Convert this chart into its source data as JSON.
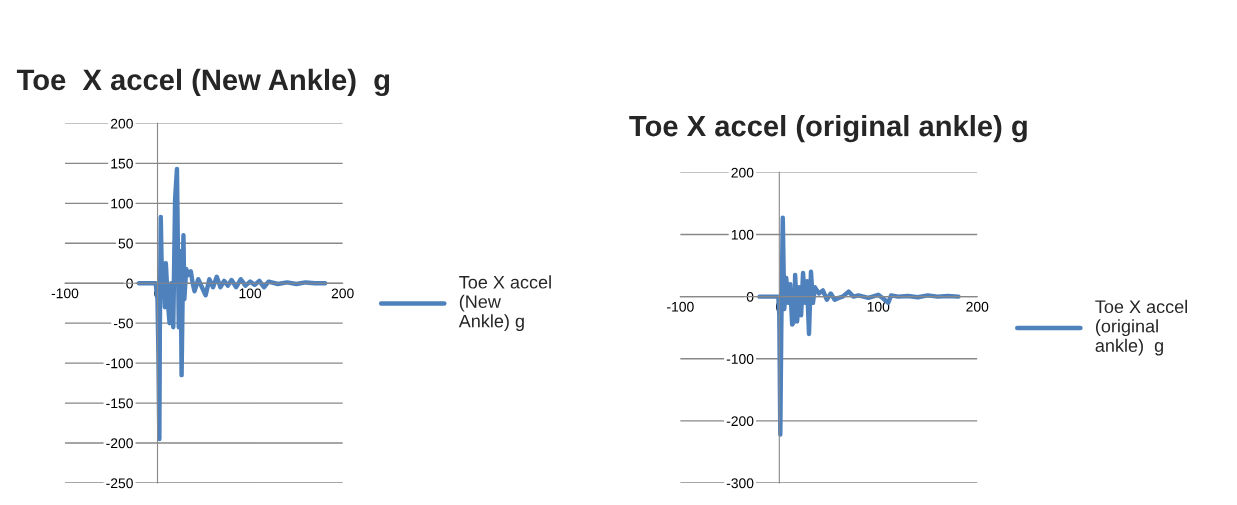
{
  "chart_data": [
    {
      "type": "line",
      "title": "Toe  X accel (New Ankle)  g",
      "xlim": [
        -100,
        200
      ],
      "xticks": [
        -100,
        0,
        100,
        200
      ],
      "ylim": [
        -250,
        200
      ],
      "yticks": [
        -250,
        -200,
        -150,
        -100,
        -50,
        0,
        50,
        100,
        150,
        200
      ],
      "grid": "y",
      "legend": "right",
      "marker": "none",
      "line_style": "solid",
      "series": [
        {
          "name": "Toe X accel (New Ankle) g",
          "color": "#4f81bd",
          "x": [
            -20,
            -2,
            0,
            1,
            2,
            2.5,
            3.5,
            5,
            6,
            8,
            9,
            11,
            13,
            15,
            17,
            19,
            21,
            23,
            25,
            26,
            28,
            29,
            31,
            33,
            36,
            38,
            40,
            44,
            48,
            52,
            56,
            60,
            64,
            68,
            72,
            76,
            80,
            85,
            90,
            95,
            100,
            105,
            110,
            115,
            120,
            130,
            140,
            150,
            160,
            170,
            181
          ],
          "values": [
            0,
            0,
            -20,
            -90,
            -195,
            -60,
            83,
            -10,
            25,
            -30,
            25,
            -20,
            -50,
            0,
            -55,
            105,
            143,
            -55,
            40,
            -115,
            60,
            -20,
            18,
            10,
            15,
            0,
            -10,
            5,
            -5,
            -15,
            5,
            -5,
            8,
            -5,
            3,
            -3,
            4,
            -5,
            5,
            -3,
            2,
            -2,
            3,
            -5,
            2,
            -1,
            1,
            -1,
            1,
            0,
            0
          ]
        }
      ]
    },
    {
      "type": "line",
      "title": "Toe X accel (original ankle) g",
      "xlim": [
        -100,
        200
      ],
      "xticks": [
        -100,
        0,
        100,
        200
      ],
      "ylim": [
        -300,
        200
      ],
      "yticks": [
        -300,
        -200,
        -100,
        0,
        100,
        200
      ],
      "grid": "y",
      "legend": "right",
      "marker": "none",
      "line_style": "solid",
      "series": [
        {
          "name": "Toe X accel (original ankle)  g",
          "color": "#4f81bd",
          "x": [
            -20,
            -1,
            0,
            1,
            2,
            3.5,
            5,
            7,
            9,
            11,
            13,
            15,
            16,
            18,
            20,
            22,
            24,
            26,
            28,
            30,
            32,
            34,
            36,
            40,
            44,
            48,
            52,
            56,
            60,
            64,
            70,
            75,
            80,
            90,
            100,
            105,
            110,
            113,
            120,
            130,
            140,
            150,
            160,
            170,
            181
          ],
          "values": [
            0,
            0,
            -30,
            -222,
            -50,
            127,
            -20,
            30,
            -10,
            20,
            -45,
            -40,
            35,
            -40,
            15,
            -30,
            38,
            -10,
            25,
            -60,
            40,
            -10,
            15,
            5,
            10,
            -5,
            5,
            -5,
            -2,
            0,
            8,
            0,
            2,
            -2,
            3,
            -3,
            -10,
            2,
            0,
            1,
            -1,
            2,
            0,
            1,
            0
          ]
        }
      ]
    }
  ]
}
